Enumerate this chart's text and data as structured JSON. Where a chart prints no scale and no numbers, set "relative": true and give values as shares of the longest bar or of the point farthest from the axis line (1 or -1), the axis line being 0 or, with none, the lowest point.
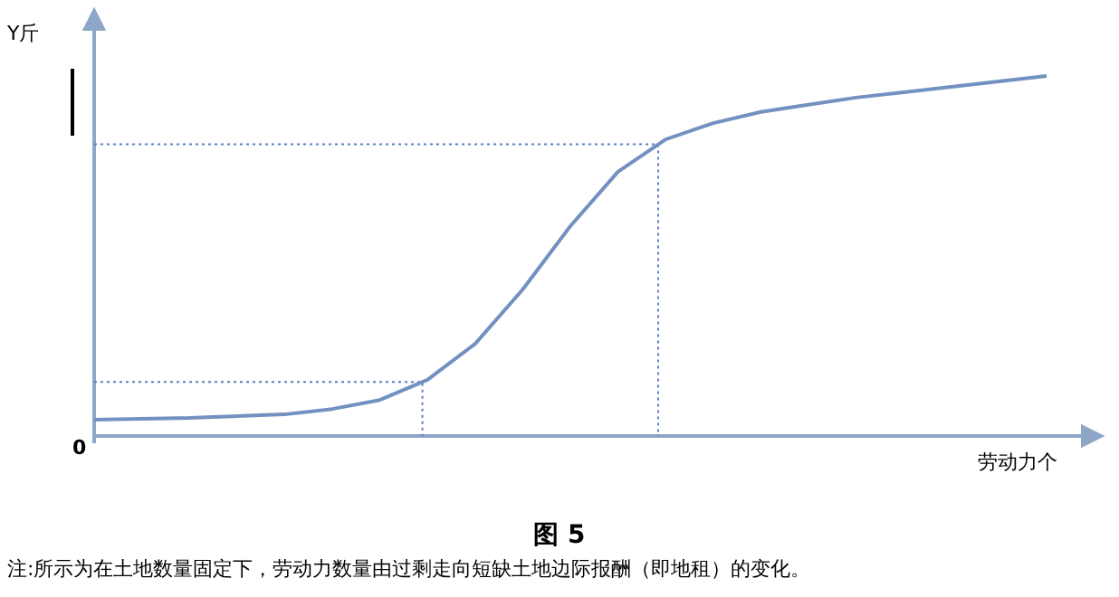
{
  "chart_data": {
    "type": "line",
    "relative": true,
    "title": "图 5",
    "ylabel": "Y斤",
    "xlabel": "劳动力个",
    "categories": [
      null,
      null,
      null,
      null,
      null,
      null,
      null,
      null,
      null,
      null,
      null,
      null,
      null,
      null,
      null,
      null,
      null,
      null,
      null,
      null,
      null
    ],
    "series": [
      {
        "color": "#7391c0",
        "values": [
          0.045,
          0.048,
          0.05,
          0.055,
          0.06,
          0.075,
          0.1,
          0.156,
          0.256,
          0.407,
          0.583,
          0.734,
          0.824,
          0.869,
          0.9,
          0.92,
          0.94,
          0.955,
          0.97,
          0.985,
          1
        ]
      }
    ],
    "ref_lines": [
      {
        "axis": "y",
        "value": 0.15,
        "color": "#5b7fc0",
        "line_style": "dotted"
      },
      {
        "axis": "y",
        "value": 0.81,
        "color": "#5b7fc0",
        "line_style": "dotted"
      }
    ],
    "annotations": [
      "0",
      "注:所示为在土地数量固定下，劳动力数量由过剩走向短缺土地边际报酬（即地租）的变化。"
    ],
    "grid": false,
    "marker": "none",
    "line_style": "solid"
  }
}
